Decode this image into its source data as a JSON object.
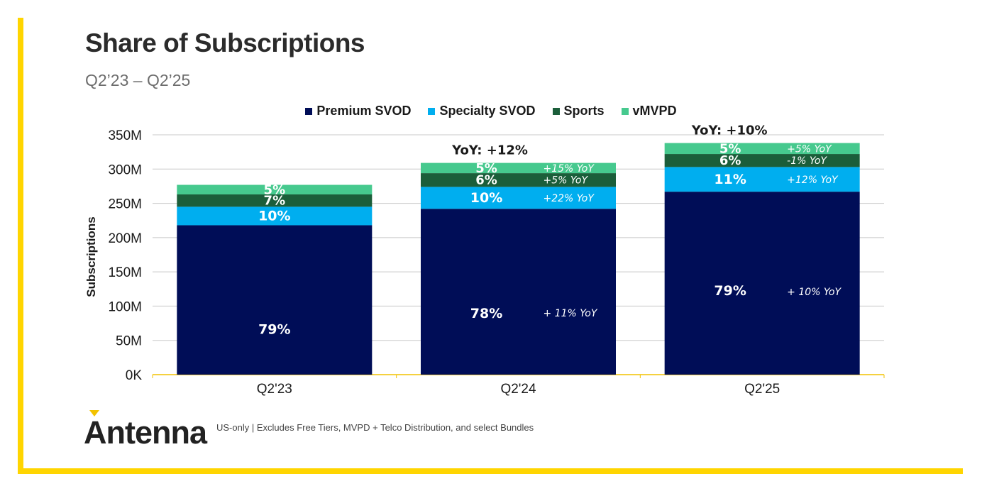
{
  "header": {
    "title": "Share of Subscriptions",
    "subtitle": "Q2’23 – Q2’25"
  },
  "footer": {
    "logo_text": "Antenna",
    "note": "US-only | Excludes Free Tiers, MVPD + Telco Distribution, and select Bundles"
  },
  "colors": {
    "premium_svod": "#000D57",
    "specialty_svod": "#00AEEF",
    "sports": "#1B5E3A",
    "vmvpd": "#46C98E",
    "accent": "#FFD500"
  },
  "chart_data": {
    "type": "bar",
    "stacked": true,
    "categories": [
      "Q2'23",
      "Q2'24",
      "Q2'25"
    ],
    "ylabel": "Subscriptions",
    "ylim": [
      0,
      350
    ],
    "yticks": [
      "0K",
      "50M",
      "100M",
      "150M",
      "200M",
      "250M",
      "300M",
      "350M"
    ],
    "legend_position": "top-center",
    "grid": true,
    "series": [
      {
        "name": "Premium SVOD",
        "values": [
          218,
          242,
          267
        ],
        "labels": [
          "79%",
          "78%",
          "79%"
        ],
        "yoy": [
          "",
          "+ 11% YoY",
          "+ 10% YoY"
        ]
      },
      {
        "name": "Specialty SVOD",
        "values": [
          27,
          32,
          36
        ],
        "labels": [
          "10%",
          "10%",
          "11%"
        ],
        "yoy": [
          "",
          "+22% YoY",
          "+12% YoY"
        ]
      },
      {
        "name": "Sports",
        "values": [
          18,
          20,
          19
        ],
        "labels": [
          "7%",
          "6%",
          "6%"
        ],
        "yoy": [
          "",
          "+5% YoY",
          "-1% YoY"
        ]
      },
      {
        "name": "vMVPD",
        "values": [
          14,
          15,
          16
        ],
        "labels": [
          "5%",
          "5%",
          "5%"
        ],
        "yoy": [
          "",
          "+15% YoY",
          "+5% YoY"
        ]
      }
    ],
    "totals_yoy": [
      "",
      "YoY: +12%",
      "YoY: +10%"
    ]
  }
}
